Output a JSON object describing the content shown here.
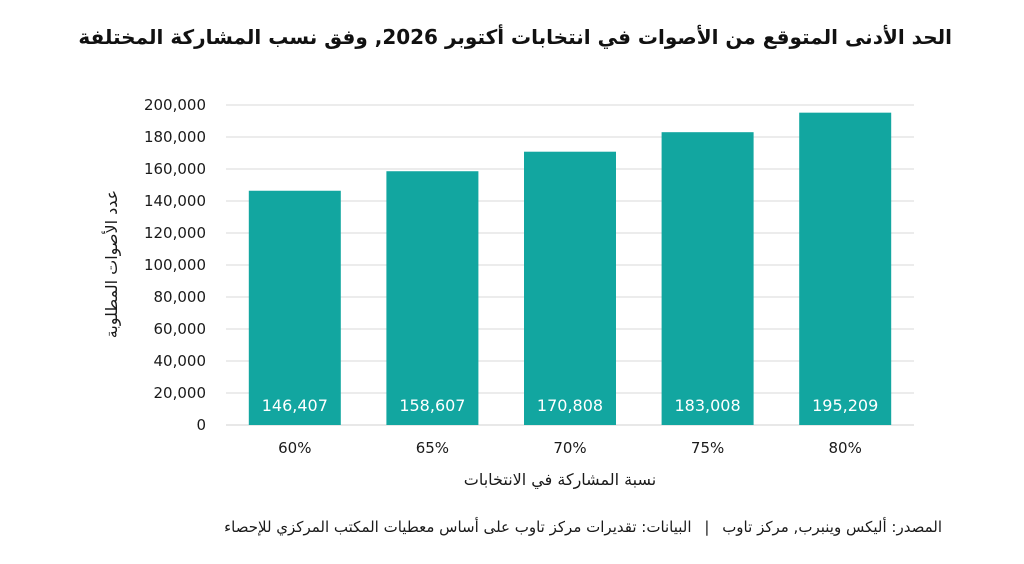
{
  "chart_data": {
    "type": "bar",
    "title": "الحد الأدنى المتوقع من الأصوات في انتخابات أكتوبر 2026, وفق نسب المشاركة المختلفة",
    "xlabel": "نسبة المشاركة في الانتخابات",
    "ylabel": "عدد الأصوات المطلوبة",
    "categories": [
      "60%",
      "65%",
      "70%",
      "75%",
      "80%"
    ],
    "values": [
      146407,
      158607,
      170808,
      183008,
      195209
    ],
    "value_labels": [
      "146,407",
      "158,607",
      "170,808",
      "183,008",
      "195,209"
    ],
    "ylim": [
      0,
      200000
    ],
    "y_ticks": [
      0,
      20000,
      40000,
      60000,
      80000,
      100000,
      120000,
      140000,
      160000,
      180000,
      200000
    ],
    "y_tick_labels": [
      "0",
      "20,000",
      "40,000",
      "60,000",
      "80,000",
      "100,000",
      "120,000",
      "140,000",
      "160,000",
      "180,000",
      "200,000"
    ],
    "grid": true,
    "bar_color": "#12a6a0",
    "grid_color": "#d9d9d9"
  },
  "footer": {
    "source": "المصدر: أليكس وينبرب, مركز تاوب",
    "separator": "|",
    "data": "البيانات: تقديرات مركز تاوب على أساس معطيات المكتب المركزي للإحصاء"
  }
}
